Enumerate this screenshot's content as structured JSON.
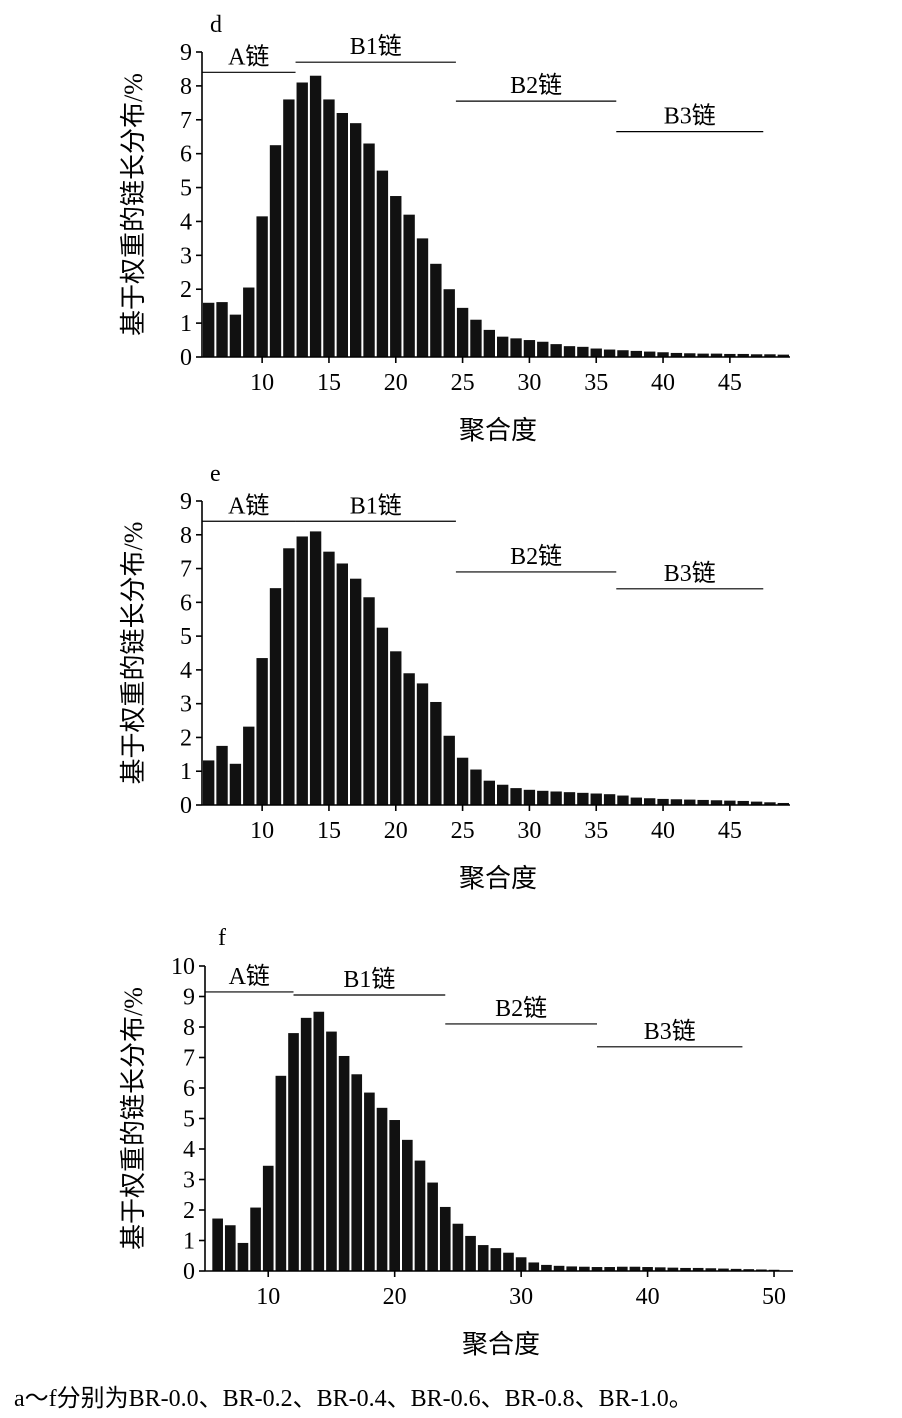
{
  "caption": "a～f分别为BR-0.0、BR-0.2、BR-0.4、BR-0.6、BR-0.8、BR-1.0。",
  "chart_data": [
    {
      "type": "bar",
      "panel_label": "d",
      "xlabel": "聚合度",
      "ylabel": "基于权重的链长分布/%",
      "xlim": [
        5.5,
        49.5
      ],
      "ylim": [
        0,
        9
      ],
      "xticks": [
        10,
        15,
        20,
        25,
        30,
        35,
        40,
        45
      ],
      "yticks": [
        0,
        1,
        2,
        3,
        4,
        5,
        6,
        7,
        8,
        9
      ],
      "x": [
        6,
        7,
        8,
        9,
        10,
        11,
        12,
        13,
        14,
        15,
        16,
        17,
        18,
        19,
        20,
        21,
        22,
        23,
        24,
        25,
        26,
        27,
        28,
        29,
        30,
        31,
        32,
        33,
        34,
        35,
        36,
        37,
        38,
        39,
        40,
        41,
        42,
        43,
        44,
        45,
        46,
        47,
        48,
        49
      ],
      "values": [
        1.6,
        1.62,
        1.25,
        2.05,
        4.15,
        6.25,
        7.6,
        8.1,
        8.3,
        7.6,
        7.2,
        6.9,
        6.3,
        5.5,
        4.75,
        4.2,
        3.5,
        2.75,
        2.0,
        1.45,
        1.1,
        0.8,
        0.6,
        0.55,
        0.5,
        0.45,
        0.38,
        0.32,
        0.3,
        0.25,
        0.22,
        0.2,
        0.18,
        0.16,
        0.14,
        0.12,
        0.11,
        0.1,
        0.1,
        0.09,
        0.09,
        0.08,
        0.08,
        0.07
      ],
      "chain_regions": [
        {
          "label": "A链",
          "from": 5.5,
          "to": 12.5,
          "level": 8.4
        },
        {
          "label": "B1链",
          "from": 12.5,
          "to": 24.5,
          "level": 8.7
        },
        {
          "label": "B2链",
          "from": 24.5,
          "to": 36.5,
          "level": 7.55
        },
        {
          "label": "B3链",
          "from": 36.5,
          "to": 47.5,
          "level": 6.65
        }
      ]
    },
    {
      "type": "bar",
      "panel_label": "e",
      "xlabel": "聚合度",
      "ylabel": "基于权重的链长分布/%",
      "xlim": [
        5.5,
        49.5
      ],
      "ylim": [
        0,
        9
      ],
      "xticks": [
        10,
        15,
        20,
        25,
        30,
        35,
        40,
        45
      ],
      "yticks": [
        0,
        1,
        2,
        3,
        4,
        5,
        6,
        7,
        8,
        9
      ],
      "x": [
        6,
        7,
        8,
        9,
        10,
        11,
        12,
        13,
        14,
        15,
        16,
        17,
        18,
        19,
        20,
        21,
        22,
        23,
        24,
        25,
        26,
        27,
        28,
        29,
        30,
        31,
        32,
        33,
        34,
        35,
        36,
        37,
        38,
        39,
        40,
        41,
        42,
        43,
        44,
        45,
        46,
        47,
        48,
        49
      ],
      "values": [
        1.32,
        1.75,
        1.22,
        2.32,
        4.35,
        6.42,
        7.6,
        7.95,
        8.1,
        7.5,
        7.15,
        6.7,
        6.15,
        5.25,
        4.55,
        3.9,
        3.6,
        3.05,
        2.05,
        1.4,
        1.05,
        0.72,
        0.6,
        0.5,
        0.45,
        0.42,
        0.4,
        0.38,
        0.36,
        0.34,
        0.32,
        0.28,
        0.22,
        0.2,
        0.18,
        0.17,
        0.16,
        0.15,
        0.14,
        0.13,
        0.12,
        0.1,
        0.08,
        0.06
      ],
      "chain_regions": [
        {
          "label": "A链",
          "from": 5.5,
          "to": 12.5,
          "level": 8.4
        },
        {
          "label": "B1链",
          "from": 12.5,
          "to": 24.5,
          "level": 8.4
        },
        {
          "label": "B2链",
          "from": 24.5,
          "to": 36.5,
          "level": 6.9
        },
        {
          "label": "B3链",
          "from": 36.5,
          "to": 47.5,
          "level": 6.4
        }
      ]
    },
    {
      "type": "bar",
      "panel_label": "f",
      "xlabel": "聚合度",
      "ylabel": "基于权重的链长分布/%",
      "xlim": [
        5.0,
        51.5
      ],
      "ylim": [
        0,
        10
      ],
      "xticks": [
        10,
        20,
        30,
        40,
        50
      ],
      "yticks": [
        0,
        1,
        2,
        3,
        4,
        5,
        6,
        7,
        8,
        9,
        10
      ],
      "x": [
        6,
        7,
        8,
        9,
        10,
        11,
        12,
        13,
        14,
        15,
        16,
        17,
        18,
        19,
        20,
        21,
        22,
        23,
        24,
        25,
        26,
        27,
        28,
        29,
        30,
        31,
        32,
        33,
        34,
        35,
        36,
        37,
        38,
        39,
        40,
        41,
        42,
        43,
        44,
        45,
        46,
        47,
        48,
        49,
        50
      ],
      "values": [
        1.72,
        1.5,
        0.92,
        2.08,
        3.45,
        6.4,
        7.8,
        8.3,
        8.5,
        7.85,
        7.05,
        6.45,
        5.85,
        5.35,
        4.95,
        4.3,
        3.62,
        2.9,
        2.1,
        1.55,
        1.15,
        0.85,
        0.75,
        0.6,
        0.45,
        0.28,
        0.2,
        0.17,
        0.15,
        0.14,
        0.13,
        0.13,
        0.14,
        0.14,
        0.13,
        0.12,
        0.11,
        0.1,
        0.1,
        0.09,
        0.08,
        0.07,
        0.06,
        0.05,
        0.04
      ],
      "chain_regions": [
        {
          "label": "A链",
          "from": 5.0,
          "to": 12.0,
          "level": 9.15
        },
        {
          "label": "B1链",
          "from": 12.0,
          "to": 24.0,
          "level": 9.05
        },
        {
          "label": "B2链",
          "from": 24.0,
          "to": 36.0,
          "level": 8.1
        },
        {
          "label": "B3链",
          "from": 36.0,
          "to": 47.5,
          "level": 7.35
        }
      ]
    }
  ]
}
